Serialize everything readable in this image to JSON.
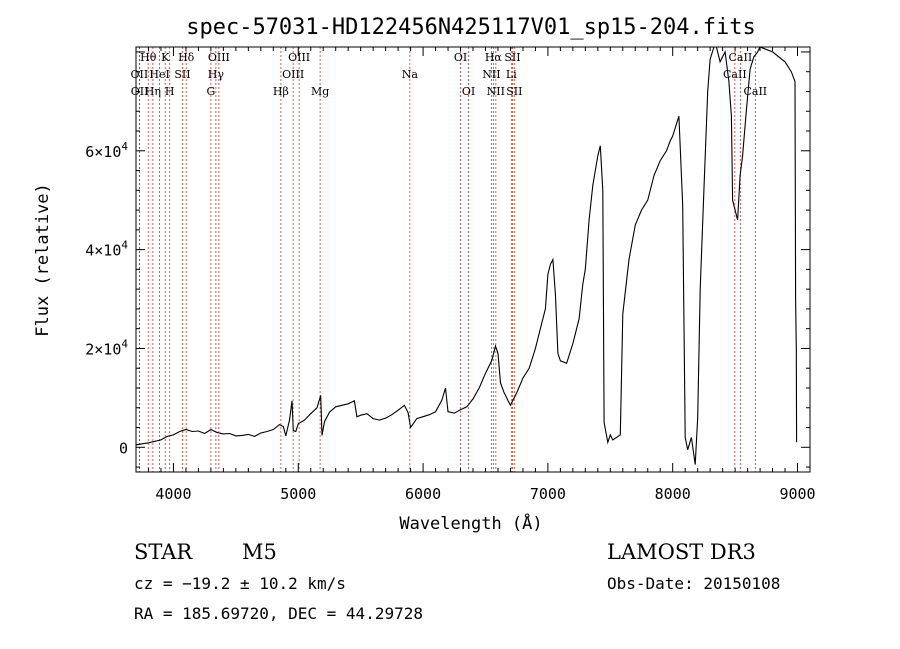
{
  "chart_data": {
    "type": "line",
    "title": "spec-57031-HD122456N425117V01_sp15-204.fits",
    "xlabel": "Wavelength (Å)",
    "ylabel": "Flux (relative)",
    "xlim": [
      3700,
      9100
    ],
    "ylim": [
      -5000,
      81000
    ],
    "x_ticks": [
      4000,
      5000,
      6000,
      7000,
      8000,
      9000
    ],
    "y_ticks": [
      {
        "value": 0,
        "base": "0",
        "exp": ""
      },
      {
        "value": 20000,
        "base": "2×10",
        "exp": "4"
      },
      {
        "value": 40000,
        "base": "4×10",
        "exp": "4"
      },
      {
        "value": 60000,
        "base": "6×10",
        "exp": "4"
      }
    ],
    "series": [
      {
        "name": "spectrum",
        "points": [
          [
            3700,
            500
          ],
          [
            3800,
            900
          ],
          [
            3900,
            1500
          ],
          [
            3950,
            2200
          ],
          [
            4000,
            2500
          ],
          [
            4050,
            3200
          ],
          [
            4100,
            3600
          ],
          [
            4150,
            3200
          ],
          [
            4200,
            3300
          ],
          [
            4250,
            2800
          ],
          [
            4300,
            3600
          ],
          [
            4350,
            3000
          ],
          [
            4400,
            2700
          ],
          [
            4450,
            2800
          ],
          [
            4500,
            2300
          ],
          [
            4550,
            2400
          ],
          [
            4600,
            2600
          ],
          [
            4650,
            2200
          ],
          [
            4700,
            2900
          ],
          [
            4750,
            3200
          ],
          [
            4800,
            3600
          ],
          [
            4850,
            4600
          ],
          [
            4880,
            4200
          ],
          [
            4900,
            2300
          ],
          [
            4930,
            5500
          ],
          [
            4950,
            9400
          ],
          [
            4960,
            3400
          ],
          [
            4980,
            3200
          ],
          [
            5000,
            4800
          ],
          [
            5050,
            5500
          ],
          [
            5100,
            6800
          ],
          [
            5150,
            8000
          ],
          [
            5180,
            10500
          ],
          [
            5190,
            2400
          ],
          [
            5210,
            5200
          ],
          [
            5250,
            7100
          ],
          [
            5300,
            8200
          ],
          [
            5350,
            8500
          ],
          [
            5400,
            8800
          ],
          [
            5450,
            9400
          ],
          [
            5470,
            6200
          ],
          [
            5500,
            6500
          ],
          [
            5550,
            6800
          ],
          [
            5600,
            5800
          ],
          [
            5650,
            5500
          ],
          [
            5700,
            5900
          ],
          [
            5750,
            6600
          ],
          [
            5800,
            7500
          ],
          [
            5850,
            8500
          ],
          [
            5880,
            7000
          ],
          [
            5900,
            4000
          ],
          [
            5950,
            5800
          ],
          [
            6000,
            6200
          ],
          [
            6050,
            6600
          ],
          [
            6100,
            7200
          ],
          [
            6150,
            9500
          ],
          [
            6180,
            12000
          ],
          [
            6200,
            7200
          ],
          [
            6250,
            6900
          ],
          [
            6300,
            7600
          ],
          [
            6350,
            8200
          ],
          [
            6400,
            9800
          ],
          [
            6450,
            12000
          ],
          [
            6500,
            15000
          ],
          [
            6550,
            17500
          ],
          [
            6580,
            20500
          ],
          [
            6600,
            19000
          ],
          [
            6620,
            13000
          ],
          [
            6650,
            11000
          ],
          [
            6700,
            8500
          ],
          [
            6720,
            9500
          ],
          [
            6750,
            11000
          ],
          [
            6800,
            14000
          ],
          [
            6850,
            16000
          ],
          [
            6900,
            20000
          ],
          [
            6950,
            25000
          ],
          [
            6980,
            28000
          ],
          [
            7000,
            35000
          ],
          [
            7020,
            37000
          ],
          [
            7040,
            38000
          ],
          [
            7060,
            31000
          ],
          [
            7080,
            19000
          ],
          [
            7100,
            17500
          ],
          [
            7150,
            17000
          ],
          [
            7200,
            21000
          ],
          [
            7250,
            26000
          ],
          [
            7280,
            33000
          ],
          [
            7300,
            36000
          ],
          [
            7330,
            46000
          ],
          [
            7360,
            53000
          ],
          [
            7400,
            59000
          ],
          [
            7420,
            61000
          ],
          [
            7440,
            52000
          ],
          [
            7450,
            5000
          ],
          [
            7480,
            1000
          ],
          [
            7500,
            2500
          ],
          [
            7520,
            1500
          ],
          [
            7550,
            2000
          ],
          [
            7580,
            2500
          ],
          [
            7600,
            27000
          ],
          [
            7650,
            38000
          ],
          [
            7700,
            45000
          ],
          [
            7750,
            48000
          ],
          [
            7800,
            50000
          ],
          [
            7850,
            55000
          ],
          [
            7900,
            58000
          ],
          [
            7950,
            60000
          ],
          [
            7980,
            62000
          ],
          [
            8000,
            63000
          ],
          [
            8050,
            67000
          ],
          [
            8080,
            49000
          ],
          [
            8100,
            2000
          ],
          [
            8120,
            -500
          ],
          [
            8150,
            2000
          ],
          [
            8180,
            -3500
          ],
          [
            8200,
            6000
          ],
          [
            8220,
            32000
          ],
          [
            8250,
            52000
          ],
          [
            8280,
            72000
          ],
          [
            8300,
            78500
          ],
          [
            8330,
            81000
          ],
          [
            8350,
            81000
          ],
          [
            8380,
            78000
          ],
          [
            8420,
            80000
          ],
          [
            8450,
            74000
          ],
          [
            8470,
            67000
          ],
          [
            8480,
            50000
          ],
          [
            8500,
            48000
          ],
          [
            8520,
            46000
          ],
          [
            8540,
            55000
          ],
          [
            8560,
            59000
          ],
          [
            8590,
            68000
          ],
          [
            8620,
            76500
          ],
          [
            8650,
            79000
          ],
          [
            8680,
            80000
          ],
          [
            8700,
            81000
          ],
          [
            8800,
            80000
          ],
          [
            8850,
            79000
          ],
          [
            8900,
            78000
          ],
          [
            8950,
            76000
          ],
          [
            8980,
            74000
          ],
          [
            8985,
            30000
          ],
          [
            8990,
            20000
          ],
          [
            8993,
            1000
          ]
        ]
      }
    ],
    "line_markers": [
      {
        "wavelength": 3727,
        "label": "OII",
        "row": 2
      },
      {
        "wavelength": 3729,
        "label": "OII",
        "row": 3
      },
      {
        "wavelength": 3798,
        "label": "Hθ",
        "row": 1
      },
      {
        "wavelength": 3835,
        "label": "Hη",
        "row": 3
      },
      {
        "wavelength": 3889,
        "label": "HeI",
        "row": 2
      },
      {
        "wavelength": 3934,
        "label": "K",
        "row": 1
      },
      {
        "wavelength": 3970,
        "label": "H",
        "row": 3
      },
      {
        "wavelength": 4072,
        "label": "SII",
        "row": 2
      },
      {
        "wavelength": 4102,
        "label": "Hδ",
        "row": 1
      },
      {
        "wavelength": 4300,
        "label": "G",
        "row": 3
      },
      {
        "wavelength": 4340,
        "label": "Hγ",
        "row": 2
      },
      {
        "wavelength": 4364,
        "label": "OIII",
        "row": 1
      },
      {
        "wavelength": 4861,
        "label": "Hβ",
        "row": 3
      },
      {
        "wavelength": 4959,
        "label": "OIII",
        "row": 2
      },
      {
        "wavelength": 5007,
        "label": "OIII",
        "row": 1
      },
      {
        "wavelength": 5175,
        "label": "Mg",
        "row": 3
      },
      {
        "wavelength": 5894,
        "label": "Na",
        "row": 2
      },
      {
        "wavelength": 6300,
        "label": "OI",
        "row": 1
      },
      {
        "wavelength": 6364,
        "label": "OI",
        "row": 3
      },
      {
        "wavelength": 6548,
        "label": "NII",
        "row": 2
      },
      {
        "wavelength": 6563,
        "label": "Hα",
        "row": 1
      },
      {
        "wavelength": 6583,
        "label": "NII",
        "row": 3
      },
      {
        "wavelength": 6707,
        "label": "Li",
        "row": 2
      },
      {
        "wavelength": 6716,
        "label": "SII",
        "row": 1
      },
      {
        "wavelength": 6731,
        "label": "SII",
        "row": 3
      },
      {
        "wavelength": 8498,
        "label": "CaII",
        "row": 2
      },
      {
        "wavelength": 8542,
        "label": "CaII",
        "row": 1
      },
      {
        "wavelength": 8662,
        "label": "CaII",
        "row": 3
      }
    ],
    "colors": {
      "spectrum": "#000000",
      "markers": "#c0392b",
      "axes": "#000000"
    }
  },
  "info": {
    "object_class": "STAR",
    "subclass": "M5",
    "redshift": "cz = −19.2 ± 10.2 km/s",
    "coords": "RA = 185.69720, DEC =  44.29728",
    "survey": "LAMOST DR3",
    "obs_date": "Obs-Date: 20150108"
  }
}
